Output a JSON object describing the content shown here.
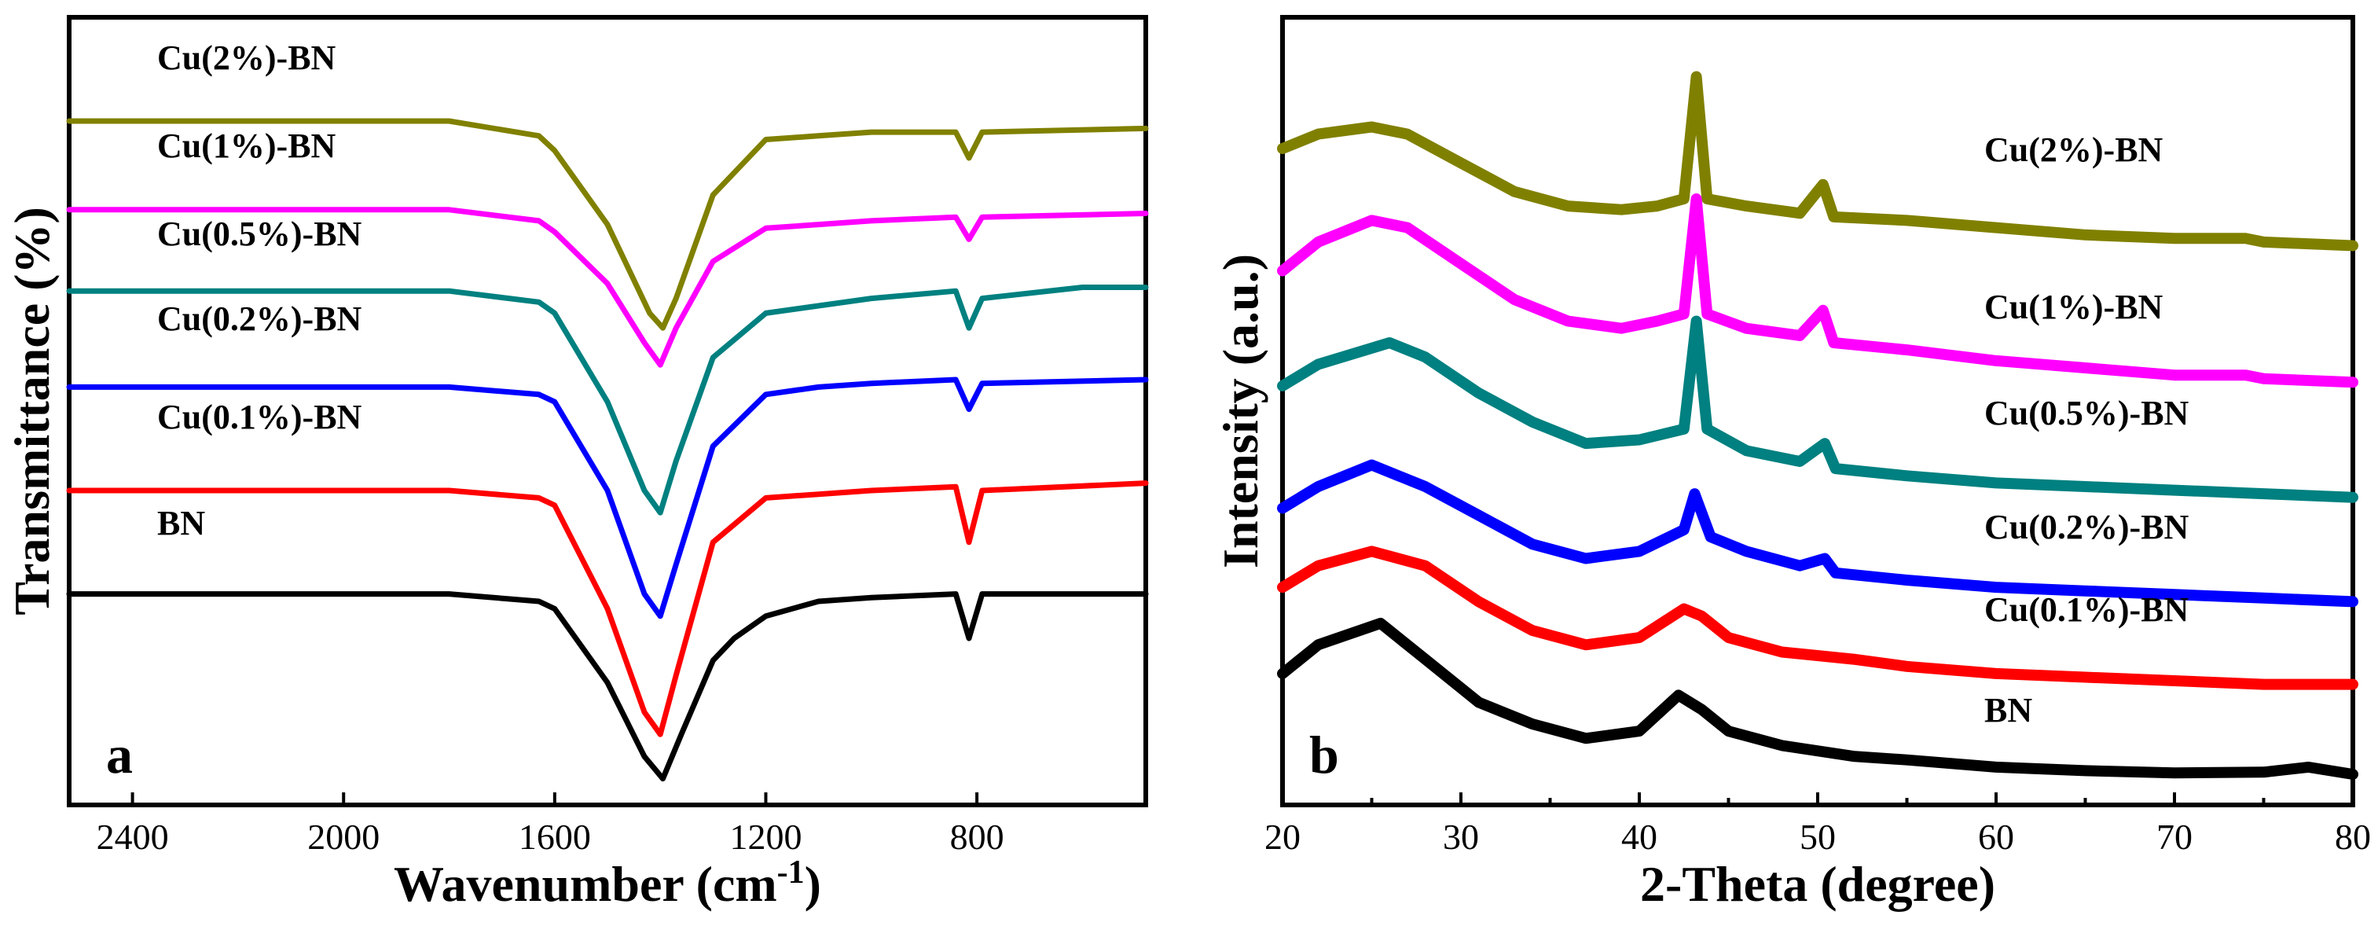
{
  "series_colors": {
    "Cu(2%)-BN": "#808000",
    "Cu(1%)-BN": "#ff00ff",
    "Cu(0.5%)-BN": "#008080",
    "Cu(0.2%)-BN": "#0000ff",
    "Cu(0.1%)-BN": "#ff0000",
    "BN": "#000000"
  },
  "chart_data": [
    {
      "panel": "a",
      "type": "line",
      "xlabel": "Wavenumber (cm",
      "xlabel_sup": "-1",
      "xlabel_close": ")",
      "ylabel": "Transmittance (%)",
      "xlim": [
        2520,
        480
      ],
      "x_ticks": [
        2400,
        2000,
        1600,
        1200,
        800
      ],
      "y_ticks_shown": false,
      "ylim": [
        0,
        100
      ],
      "series": [
        {
          "name": "Cu(2%)-BN",
          "offset": 90,
          "points": [
            [
              2520,
              90
            ],
            [
              1800,
              90
            ],
            [
              1630,
              88
            ],
            [
              1600,
              86
            ],
            [
              1500,
              76
            ],
            [
              1420,
              64
            ],
            [
              1395,
              62
            ],
            [
              1370,
              66
            ],
            [
              1300,
              80
            ],
            [
              1200,
              87.5
            ],
            [
              1100,
              88
            ],
            [
              1000,
              88.5
            ],
            [
              840,
              88.5
            ],
            [
              815,
              85
            ],
            [
              790,
              88.5
            ],
            [
              480,
              89
            ]
          ]
        },
        {
          "name": "Cu(1%)-BN",
          "offset": 78,
          "points": [
            [
              2520,
              78
            ],
            [
              1800,
              78
            ],
            [
              1630,
              76.5
            ],
            [
              1600,
              75
            ],
            [
              1500,
              68
            ],
            [
              1430,
              60
            ],
            [
              1400,
              57
            ],
            [
              1370,
              62
            ],
            [
              1300,
              71
            ],
            [
              1200,
              75.5
            ],
            [
              1100,
              76
            ],
            [
              1000,
              76.5
            ],
            [
              840,
              77
            ],
            [
              815,
              74
            ],
            [
              790,
              77
            ],
            [
              480,
              77.5
            ]
          ]
        },
        {
          "name": "Cu(0.5%)-BN",
          "offset": 67,
          "points": [
            [
              2520,
              67
            ],
            [
              1800,
              67
            ],
            [
              1630,
              65.5
            ],
            [
              1600,
              64
            ],
            [
              1500,
              52
            ],
            [
              1430,
              40
            ],
            [
              1400,
              37
            ],
            [
              1370,
              44
            ],
            [
              1300,
              58
            ],
            [
              1200,
              64
            ],
            [
              1100,
              65
            ],
            [
              1000,
              66
            ],
            [
              840,
              67
            ],
            [
              815,
              62
            ],
            [
              790,
              66
            ],
            [
              600,
              67.5
            ],
            [
              480,
              67.5
            ]
          ]
        },
        {
          "name": "Cu(0.2%)-BN",
          "offset": 54,
          "points": [
            [
              2520,
              54
            ],
            [
              1800,
              54
            ],
            [
              1630,
              53
            ],
            [
              1600,
              52
            ],
            [
              1500,
              40
            ],
            [
              1430,
              26
            ],
            [
              1400,
              23
            ],
            [
              1370,
              30
            ],
            [
              1300,
              46
            ],
            [
              1200,
              53
            ],
            [
              1100,
              54
            ],
            [
              1000,
              54.5
            ],
            [
              840,
              55
            ],
            [
              815,
              51
            ],
            [
              790,
              54.5
            ],
            [
              480,
              55
            ]
          ]
        },
        {
          "name": "Cu(0.1%)-BN",
          "offset": 40,
          "points": [
            [
              2520,
              40
            ],
            [
              1800,
              40
            ],
            [
              1630,
              39
            ],
            [
              1600,
              38
            ],
            [
              1500,
              24
            ],
            [
              1430,
              10
            ],
            [
              1400,
              7
            ],
            [
              1370,
              15
            ],
            [
              1300,
              33
            ],
            [
              1200,
              39
            ],
            [
              1100,
              39.5
            ],
            [
              1000,
              40
            ],
            [
              840,
              40.5
            ],
            [
              815,
              33
            ],
            [
              790,
              40
            ],
            [
              480,
              41
            ]
          ]
        },
        {
          "name": "BN",
          "offset": 26,
          "points": [
            [
              2520,
              26
            ],
            [
              1800,
              26
            ],
            [
              1630,
              25
            ],
            [
              1600,
              24
            ],
            [
              1500,
              14
            ],
            [
              1430,
              4
            ],
            [
              1395,
              1
            ],
            [
              1360,
              7
            ],
            [
              1300,
              17
            ],
            [
              1260,
              20
            ],
            [
              1200,
              23
            ],
            [
              1100,
              25
            ],
            [
              1000,
              25.5
            ],
            [
              840,
              26
            ],
            [
              815,
              20
            ],
            [
              790,
              26
            ],
            [
              480,
              26
            ]
          ]
        }
      ]
    },
    {
      "panel": "b",
      "type": "line",
      "xlabel": "2-Theta (degree)",
      "ylabel": "Intensity (a.u.)",
      "xlim": [
        20,
        80
      ],
      "x_ticks": [
        20,
        30,
        40,
        50,
        60,
        70,
        80
      ],
      "y_ticks_shown": false,
      "ylim": [
        0,
        100
      ],
      "series": [
        {
          "name": "Cu(2%)-BN",
          "points": [
            [
              20,
              87
            ],
            [
              22,
              89
            ],
            [
              25,
              90
            ],
            [
              27,
              89
            ],
            [
              30,
              85
            ],
            [
              33,
              81
            ],
            [
              36,
              79
            ],
            [
              39,
              78.5
            ],
            [
              41,
              79
            ],
            [
              42.5,
              80
            ],
            [
              43.2,
              97
            ],
            [
              43.8,
              80
            ],
            [
              46,
              79
            ],
            [
              49,
              78
            ],
            [
              50.3,
              82
            ],
            [
              50.9,
              77.5
            ],
            [
              55,
              77
            ],
            [
              60,
              76
            ],
            [
              65,
              75
            ],
            [
              70,
              74.5
            ],
            [
              74,
              74.5
            ],
            [
              75,
              74
            ],
            [
              80,
              73.5
            ]
          ]
        },
        {
          "name": "Cu(1%)-BN",
          "points": [
            [
              20,
              70
            ],
            [
              22,
              74
            ],
            [
              25,
              77
            ],
            [
              27,
              76
            ],
            [
              30,
              71
            ],
            [
              33,
              66
            ],
            [
              36,
              63
            ],
            [
              39,
              62
            ],
            [
              41,
              63
            ],
            [
              42.5,
              64
            ],
            [
              43.2,
              80
            ],
            [
              43.8,
              64
            ],
            [
              46,
              62
            ],
            [
              49,
              61
            ],
            [
              50.3,
              64.5
            ],
            [
              50.9,
              60
            ],
            [
              55,
              59
            ],
            [
              60,
              57.5
            ],
            [
              65,
              56.5
            ],
            [
              70,
              55.5
            ],
            [
              74,
              55.5
            ],
            [
              75,
              55
            ],
            [
              80,
              54.5
            ]
          ]
        },
        {
          "name": "Cu(0.5%)-BN",
          "points": [
            [
              20,
              54
            ],
            [
              22,
              57
            ],
            [
              26,
              60
            ],
            [
              28,
              58
            ],
            [
              31,
              53
            ],
            [
              34,
              49
            ],
            [
              37,
              46
            ],
            [
              40,
              46.5
            ],
            [
              42.5,
              48
            ],
            [
              43.2,
              63
            ],
            [
              43.8,
              48
            ],
            [
              46,
              45
            ],
            [
              49,
              43.5
            ],
            [
              50.4,
              46
            ],
            [
              51,
              42.5
            ],
            [
              55,
              41.5
            ],
            [
              60,
              40.5
            ],
            [
              65,
              40
            ],
            [
              70,
              39.5
            ],
            [
              75,
              39
            ],
            [
              80,
              38.5
            ]
          ]
        },
        {
          "name": "Cu(0.2%)-BN",
          "points": [
            [
              20,
              37
            ],
            [
              22,
              40
            ],
            [
              25,
              43
            ],
            [
              28,
              40
            ],
            [
              31,
              36
            ],
            [
              34,
              32
            ],
            [
              37,
              30
            ],
            [
              40,
              31
            ],
            [
              42.5,
              34
            ],
            [
              43.1,
              39
            ],
            [
              44,
              33
            ],
            [
              46,
              31
            ],
            [
              49,
              29
            ],
            [
              50.4,
              30
            ],
            [
              51,
              28
            ],
            [
              55,
              27
            ],
            [
              60,
              26
            ],
            [
              65,
              25.5
            ],
            [
              70,
              25
            ],
            [
              75,
              24.5
            ],
            [
              80,
              24
            ]
          ]
        },
        {
          "name": "Cu(0.1%)-BN",
          "points": [
            [
              20,
              26
            ],
            [
              22,
              29
            ],
            [
              25,
              31
            ],
            [
              28,
              29
            ],
            [
              31,
              24
            ],
            [
              34,
              20
            ],
            [
              37,
              18
            ],
            [
              40,
              19
            ],
            [
              42.5,
              23
            ],
            [
              43.5,
              22
            ],
            [
              45,
              19
            ],
            [
              48,
              17
            ],
            [
              52,
              16
            ],
            [
              55,
              15
            ],
            [
              60,
              14
            ],
            [
              65,
              13.5
            ],
            [
              70,
              13
            ],
            [
              75,
              12.5
            ],
            [
              80,
              12.5
            ]
          ]
        },
        {
          "name": "BN",
          "points": [
            [
              20,
              14
            ],
            [
              22,
              18
            ],
            [
              25.5,
              21
            ],
            [
              28,
              16
            ],
            [
              31,
              10
            ],
            [
              34,
              7
            ],
            [
              37,
              5
            ],
            [
              40,
              6
            ],
            [
              42.2,
              11
            ],
            [
              43.5,
              9
            ],
            [
              45,
              6
            ],
            [
              48,
              4
            ],
            [
              52,
              2.5
            ],
            [
              55,
              2
            ],
            [
              60,
              1
            ],
            [
              65,
              0.5
            ],
            [
              70,
              0.2
            ],
            [
              75,
              0.3
            ],
            [
              77.5,
              1
            ],
            [
              80,
              0
            ]
          ]
        }
      ]
    }
  ],
  "labels": {
    "a": [
      "Cu(2%)-BN",
      "Cu(1%)-BN",
      "Cu(0.5%)-BN",
      "Cu(0.2%)-BN",
      "Cu(0.1%)-BN",
      "BN"
    ],
    "b": [
      "Cu(2%)-BN",
      "Cu(1%)-BN",
      "Cu(0.5%)-BN",
      "Cu(0.2%)-BN",
      "Cu(0.1%)-BN",
      "BN"
    ]
  }
}
